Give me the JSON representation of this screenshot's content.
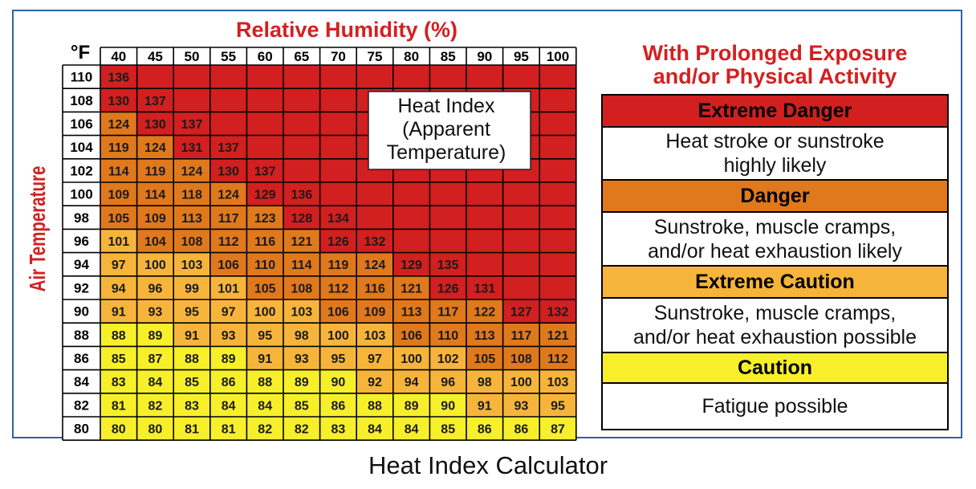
{
  "chart_data": {
    "type": "heatmap",
    "title": "Relative Humidity (%)",
    "ylabel": "Air Temperature",
    "unit_label": "°F",
    "x": [
      40,
      45,
      50,
      55,
      60,
      65,
      70,
      75,
      80,
      85,
      90,
      95,
      100
    ],
    "y": [
      110,
      108,
      106,
      104,
      102,
      100,
      98,
      96,
      94,
      92,
      90,
      88,
      86,
      84,
      82,
      80
    ],
    "values": [
      [
        136,
        null,
        null,
        null,
        null,
        null,
        null,
        null,
        null,
        null,
        null,
        null,
        null
      ],
      [
        130,
        137,
        null,
        null,
        null,
        null,
        null,
        null,
        null,
        null,
        null,
        null,
        null
      ],
      [
        124,
        130,
        137,
        null,
        null,
        null,
        null,
        null,
        null,
        null,
        null,
        null,
        null
      ],
      [
        119,
        124,
        131,
        137,
        null,
        null,
        null,
        null,
        null,
        null,
        null,
        null,
        null
      ],
      [
        114,
        119,
        124,
        130,
        137,
        null,
        null,
        null,
        null,
        null,
        null,
        null,
        null
      ],
      [
        109,
        114,
        118,
        124,
        129,
        136,
        null,
        null,
        null,
        null,
        null,
        null,
        null
      ],
      [
        105,
        109,
        113,
        117,
        123,
        128,
        134,
        null,
        null,
        null,
        null,
        null,
        null
      ],
      [
        101,
        104,
        108,
        112,
        116,
        121,
        126,
        132,
        null,
        null,
        null,
        null,
        null
      ],
      [
        97,
        100,
        103,
        106,
        110,
        114,
        119,
        124,
        129,
        135,
        null,
        null,
        null
      ],
      [
        94,
        96,
        99,
        101,
        105,
        108,
        112,
        116,
        121,
        126,
        131,
        null,
        null
      ],
      [
        91,
        93,
        95,
        97,
        100,
        103,
        106,
        109,
        113,
        117,
        122,
        127,
        132
      ],
      [
        88,
        89,
        91,
        93,
        95,
        98,
        100,
        103,
        106,
        110,
        113,
        117,
        121
      ],
      [
        85,
        87,
        88,
        89,
        91,
        93,
        95,
        97,
        100,
        102,
        105,
        108,
        112
      ],
      [
        83,
        84,
        85,
        86,
        88,
        89,
        90,
        92,
        94,
        96,
        98,
        100,
        103
      ],
      [
        81,
        82,
        83,
        84,
        84,
        85,
        86,
        88,
        89,
        90,
        91,
        93,
        95
      ],
      [
        80,
        80,
        81,
        81,
        82,
        82,
        83,
        84,
        84,
        85,
        86,
        86,
        87
      ]
    ],
    "annotation": [
      "Heat Index",
      "(Apparent",
      "Temperature)"
    ],
    "bands": [
      {
        "name": "Caution",
        "max": 90,
        "color": "#f7ef2a"
      },
      {
        "name": "Extreme Caution",
        "max": 103,
        "color": "#f6b53a"
      },
      {
        "name": "Danger",
        "max": 124,
        "color": "#e0781c"
      },
      {
        "name": "Extreme Danger",
        "max": 999,
        "color": "#d21f1f"
      }
    ]
  },
  "legend": {
    "title_lines": [
      "With Prolonged Exposure",
      "and/or Physical Activity"
    ],
    "items": [
      {
        "label": "Extreme Danger",
        "color": "#d21f1f",
        "desc": [
          "Heat stroke or sunstroke",
          "highly likely"
        ]
      },
      {
        "label": "Danger",
        "color": "#e0781c",
        "desc": [
          "Sunstroke, muscle cramps,",
          "and/or heat exhaustion likely"
        ]
      },
      {
        "label": "Extreme Caution",
        "color": "#f6b53a",
        "desc": [
          "Sunstroke, muscle cramps,",
          "and/or heat exhaustion possible"
        ]
      },
      {
        "label": "Caution",
        "color": "#f7ef2a",
        "desc": [
          "Fatigue possible"
        ]
      }
    ]
  },
  "caption": "Heat Index Calculator"
}
